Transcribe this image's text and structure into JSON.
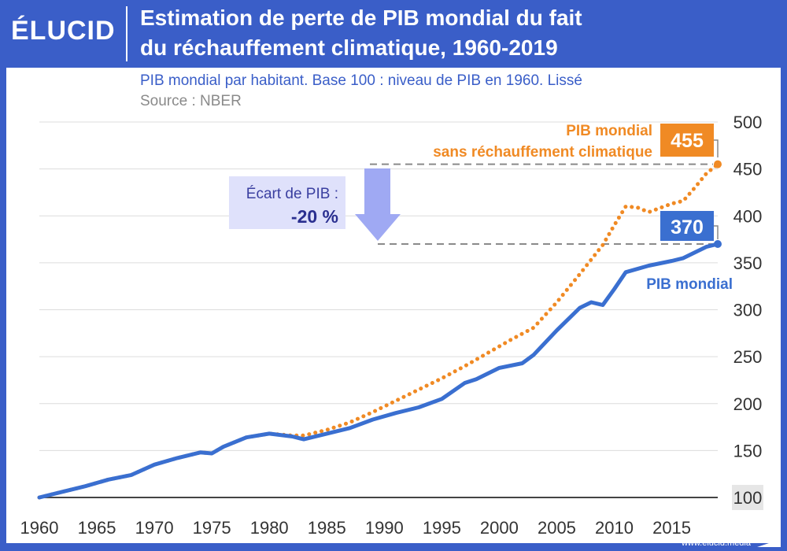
{
  "header": {
    "logo": "ÉLUCID",
    "title_line1": "Estimation de perte de PIB mondial du fait",
    "title_line2": "du réchauffement climatique, 1960-2019",
    "subtitle": "PIB mondial par habitant. Base 100 : niveau de PIB en 1960. Lissé",
    "source": "Source : NBER"
  },
  "footer": {
    "site": "www.elucid.media"
  },
  "colors": {
    "blue": "#3a6fd0",
    "orange": "#f08a24",
    "header_bg": "#3a5ec8",
    "arrow": "#9fa9f3",
    "box_bg": "#dfe1fb",
    "grid": "#dcdcdc"
  },
  "annotation": {
    "line1": "Écart de PIB :",
    "line2": "-20 %"
  },
  "chart_data": {
    "type": "line",
    "title": "Estimation de perte de PIB mondial du fait du réchauffement climatique, 1960-2019",
    "xlabel": "",
    "ylabel": "",
    "xlim": [
      1960,
      2019
    ],
    "ylim": [
      100,
      500
    ],
    "x_ticks": [
      1960,
      1965,
      1970,
      1975,
      1980,
      1985,
      1990,
      1995,
      2000,
      2005,
      2010,
      2015
    ],
    "y_ticks": [
      100,
      150,
      200,
      250,
      300,
      350,
      400,
      450,
      500
    ],
    "grid": true,
    "series": [
      {
        "name": "PIB mondial",
        "style": "solid",
        "end_label": "370",
        "x": [
          1960,
          1962,
          1964,
          1966,
          1968,
          1970,
          1972,
          1974,
          1975,
          1976,
          1978,
          1980,
          1982,
          1983,
          1985,
          1987,
          1989,
          1991,
          1993,
          1995,
          1997,
          1998,
          2000,
          2002,
          2003,
          2005,
          2007,
          2008,
          2009,
          2010,
          2011,
          2013,
          2015,
          2016,
          2017,
          2018,
          2019
        ],
        "values": [
          100,
          106,
          112,
          119,
          124,
          135,
          142,
          148,
          147,
          154,
          164,
          168,
          165,
          162,
          168,
          174,
          183,
          190,
          196,
          205,
          222,
          226,
          238,
          243,
          252,
          278,
          302,
          308,
          305,
          322,
          340,
          347,
          352,
          355,
          361,
          367,
          370
        ]
      },
      {
        "name": "PIB mondial sans réchauffement climatique",
        "style": "dotted",
        "end_label": "455",
        "x": [
          1960,
          1962,
          1964,
          1966,
          1968,
          1970,
          1972,
          1974,
          1975,
          1976,
          1978,
          1980,
          1982,
          1983,
          1985,
          1987,
          1989,
          1991,
          1993,
          1995,
          1997,
          1999,
          2001,
          2003,
          2005,
          2007,
          2009,
          2010,
          2011,
          2012,
          2013,
          2015,
          2016,
          2017,
          2018,
          2019
        ],
        "values": [
          100,
          106,
          112,
          119,
          124,
          135,
          142,
          148,
          147,
          154,
          164,
          168,
          166,
          166,
          172,
          180,
          191,
          203,
          215,
          227,
          240,
          254,
          268,
          281,
          308,
          338,
          369,
          390,
          410,
          409,
          404,
          413,
          416,
          430,
          445,
          455
        ]
      }
    ]
  },
  "series_labels": {
    "orange_line1": "PIB mondial",
    "orange_line2": "sans réchauffement climatique",
    "blue": "PIB mondial"
  }
}
